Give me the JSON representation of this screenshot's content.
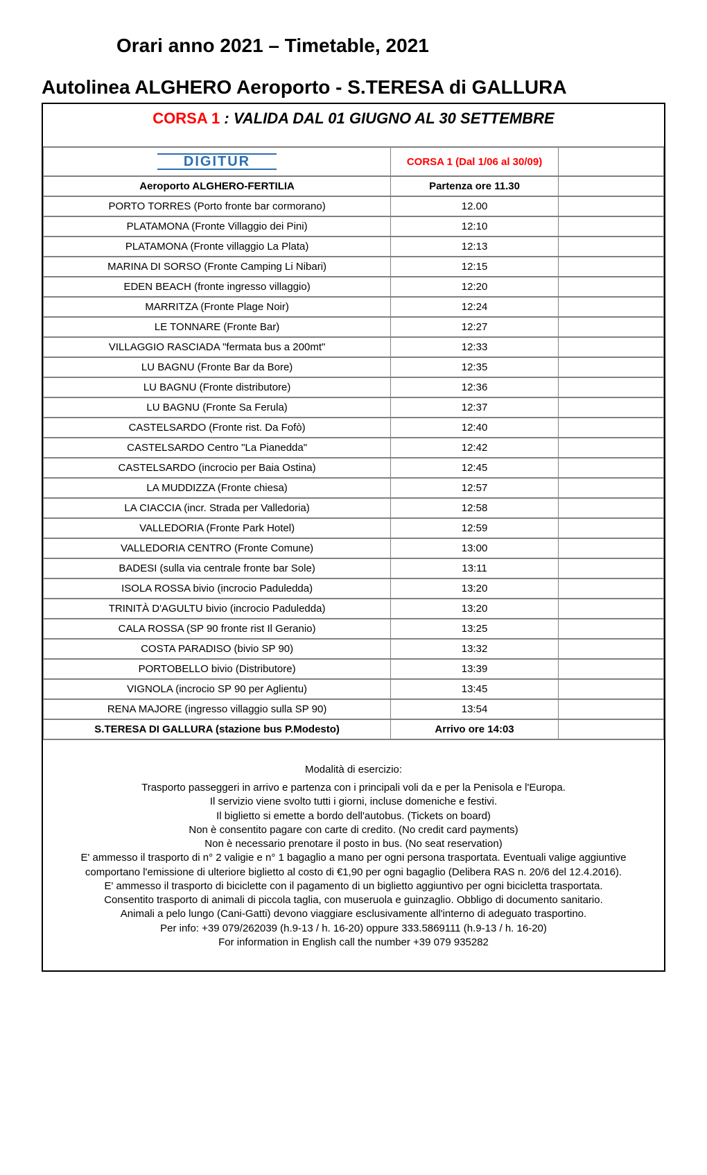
{
  "page_title_1": "Orari anno 2021 – Timetable, 2021",
  "page_title_2": "Autolinea ALGHERO Aeroporto - S.TERESA di GALLURA",
  "subtitle_red": "CORSA 1 ",
  "subtitle_black": ": VALIDA DAL 01 GIUGNO AL 30 SETTEMBRE",
  "logo_text": "DIGITUR",
  "logo_color": "#2b6fb3",
  "corsa_header": "CORSA 1 (Dal 1/06 al 30/09)",
  "header_row": {
    "stop": "Aeroporto ALGHERO-FERTILIA",
    "time": "Partenza ore 11.30"
  },
  "rows": [
    {
      "stop": "PORTO TORRES (Porto fronte bar cormorano)",
      "time": "12.00"
    },
    {
      "stop": "PLATAMONA (Fronte Villaggio dei Pini)",
      "time": "12:10"
    },
    {
      "stop": "PLATAMONA (Fronte villaggio La Plata)",
      "time": "12:13"
    },
    {
      "stop": "MARINA DI SORSO (Fronte Camping Li Nibari)",
      "time": "12:15"
    },
    {
      "stop": "EDEN BEACH (fronte ingresso villaggio)",
      "time": "12:20"
    },
    {
      "stop": "MARRITZA (Fronte Plage Noir)",
      "time": "12:24"
    },
    {
      "stop": "LE TONNARE (Fronte Bar)",
      "time": "12:27"
    },
    {
      "stop": "VILLAGGIO RASCIADA \"fermata bus a 200mt\"",
      "time": "12:33"
    },
    {
      "stop": "LU BAGNU (Fronte Bar da Bore)",
      "time": "12:35"
    },
    {
      "stop": "LU BAGNU (Fronte distributore)",
      "time": "12:36"
    },
    {
      "stop": "LU BAGNU (Fronte Sa Ferula)",
      "time": "12:37"
    },
    {
      "stop": "CASTELSARDO  (Fronte rist. Da Fofò)",
      "time": "12:40"
    },
    {
      "stop": "CASTELSARDO Centro \"La Pianedda\"",
      "time": "12:42"
    },
    {
      "stop": "CASTELSARDO (incrocio per Baia Ostina)",
      "time": "12:45"
    },
    {
      "stop": "LA MUDDIZZA (Fronte chiesa)",
      "time": "12:57"
    },
    {
      "stop": "LA CIACCIA (incr. Strada per Valledoria)",
      "time": "12:58"
    },
    {
      "stop": "VALLEDORIA  (Fronte Park Hotel)",
      "time": "12:59"
    },
    {
      "stop": "VALLEDORIA CENTRO (Fronte Comune)",
      "time": "13:00"
    },
    {
      "stop": "BADESI (sulla via centrale fronte bar Sole)",
      "time": "13:11"
    },
    {
      "stop": "ISOLA ROSSA bivio (incrocio Paduledda)",
      "time": "13:20"
    },
    {
      "stop": "TRINITÀ D'AGULTU bivio (incrocio Paduledda)",
      "time": "13:20"
    },
    {
      "stop": "CALA ROSSA (SP 90 fronte rist Il Geranio)",
      "time": "13:25"
    },
    {
      "stop": "COSTA PARADISO (bivio SP 90)",
      "time": "13:32"
    },
    {
      "stop": "PORTOBELLO bivio (Distributore)",
      "time": "13:39"
    },
    {
      "stop": "VIGNOLA (incrocio SP 90 per Aglientu)",
      "time": "13:45"
    },
    {
      "stop": "RENA MAJORE (ingresso villaggio sulla SP 90)",
      "time": "13:54"
    }
  ],
  "footer_row": {
    "stop": "S.TERESA DI GALLURA (stazione bus P.Modesto)",
    "time": "Arrivo ore 14:03"
  },
  "modalita_title": "Modalità di esercizio:",
  "modalita_lines": [
    "Trasporto passeggeri in arrivo e partenza con i principali voli da e per la Penisola e l'Europa.",
    "Il servizio viene svolto tutti i giorni, incluse domeniche e festivi.",
    "Il biglietto si emette a bordo dell'autobus. (Tickets on board)",
    "Non è consentito pagare con carte di credito. (No credit card payments)",
    "Non è necessario prenotare il posto in bus. (No seat reservation)",
    "E' ammesso il trasporto di n° 2 valigie e n° 1 bagaglio a mano per ogni persona trasportata. Eventuali valige aggiuntive",
    "comportano l'emissione di ulteriore biglietto al costo di €1,90 per ogni bagaglio (Delibera RAS  n. 20/6 del 12.4.2016).",
    "E' ammesso il trasporto di biciclette con il pagamento di un biglietto aggiuntivo per ogni bicicletta trasportata.",
    "Consentito trasporto di animali di piccola taglia, con museruola e guinzaglio. Obbligo di documento sanitario.",
    "Animali a pelo lungo (Cani-Gatti) devono viaggiare esclusivamente all'interno di adeguato trasportino.",
    "Per info: +39 079/262039 (h.9-13 / h. 16-20) oppure 333.5869111 (h.9-13 / h. 16-20)",
    "For information in English call the number +39 079 935282"
  ],
  "colors": {
    "text": "#000000",
    "red": "#ff0000",
    "border": "#808080",
    "outer_border": "#000000",
    "background": "#ffffff"
  }
}
